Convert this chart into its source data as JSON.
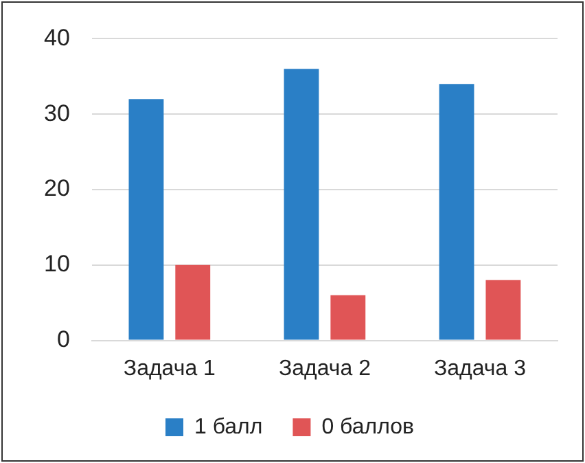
{
  "chart_data": {
    "type": "bar",
    "categories": [
      "Задача 1",
      "Задача 2",
      "Задача 3"
    ],
    "series": [
      {
        "name": "1 балл",
        "color": "#2a7fc6",
        "values": [
          32,
          36,
          34
        ]
      },
      {
        "name": "0 баллов",
        "color": "#e05556",
        "values": [
          10,
          6,
          8
        ]
      }
    ],
    "ylim": [
      0,
      40
    ],
    "yticks": [
      0,
      10,
      20,
      30,
      40
    ],
    "grid": "y",
    "legend": "bottom"
  }
}
